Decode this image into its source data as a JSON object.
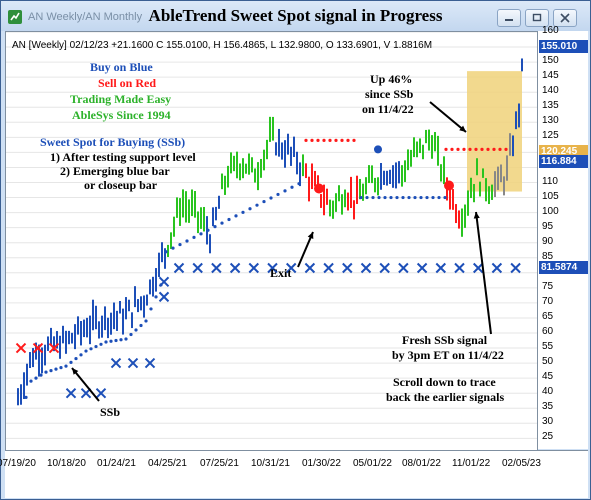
{
  "window": {
    "tab_label": "AN Weekly/AN Monthly",
    "title": "AbleTrend Sweet Spot signal in Progress"
  },
  "chart": {
    "info_line": "AN [Weekly] 02/12/23  +21.1600 C 155.0100, H 156.4865, L 132.9800, O 133.6901, V 1.8816M",
    "legend": {
      "buy": "Buy on Blue",
      "sell": "Sell on Red",
      "tagline": "Trading Made Easy",
      "since": "AbleSys Since 1994"
    },
    "sweet_spot": {
      "heading": "Sweet Spot for Buying (SSb)",
      "line1": "1) After testing support level",
      "line2": "2) Emerging blue bar",
      "line3": "or closeup bar"
    },
    "annotations": {
      "up_line1": "Up 46%",
      "up_line2": "since SSb",
      "up_line3": "on 11/4/22",
      "exit": "Exit",
      "ssb": "SSb",
      "fresh_line1": "Fresh SSb signal",
      "fresh_line2": "by 3pm ET on 11/4/22",
      "scroll_line1": "Scroll down to trace",
      "scroll_line2": "back the earlier signals"
    },
    "price_axis": {
      "ticks": [
        "160",
        "155",
        "150",
        "145",
        "140",
        "135",
        "130",
        "125",
        "120",
        "115",
        "110",
        "105",
        "100",
        "95",
        "90",
        "85",
        "80",
        "75",
        "70",
        "65",
        "60",
        "55",
        "50",
        "45",
        "40",
        "35",
        "30",
        "25"
      ],
      "badges": [
        {
          "label": "155.010",
          "value": 155.01,
          "color": "#1d4fb8"
        },
        {
          "label": "120.245",
          "value": 120.245,
          "color": "#e8b34a"
        },
        {
          "label": "116.884",
          "value": 116.884,
          "color": "#1d4fb8"
        },
        {
          "label": "81.5874",
          "value": 81.5874,
          "color": "#1d4fb8"
        }
      ]
    },
    "date_axis": {
      "labels": [
        "07/19/20",
        "10/18/20",
        "01/24/21",
        "04/25/21",
        "07/25/21",
        "10/31/21",
        "01/30/22",
        "05/01/22",
        "08/01/22",
        "11/01/22",
        "02/05/23"
      ]
    },
    "colors": {
      "buy": "#1d4fb8",
      "sell": "#ff1a1a",
      "neutral": "#29c41f",
      "highlight": "#f0d27a"
    }
  },
  "chart_data": {
    "type": "candlestick",
    "title": "AbleTrend Sweet Spot signal in Progress",
    "ylim": [
      25,
      162
    ],
    "x": [
      "07/19/20",
      "10/18/20",
      "01/24/21",
      "04/25/21",
      "07/25/21",
      "10/31/21",
      "01/30/22",
      "05/01/22",
      "08/01/22",
      "11/01/22",
      "02/05/23"
    ],
    "close_approx": [
      38,
      55,
      70,
      105,
      115,
      122,
      108,
      112,
      125,
      98,
      155.01
    ],
    "last": {
      "close": 155.01,
      "high": 156.4865,
      "low": 132.98,
      "open": 133.6901,
      "change": 21.16,
      "volume": "1.8816M"
    }
  }
}
